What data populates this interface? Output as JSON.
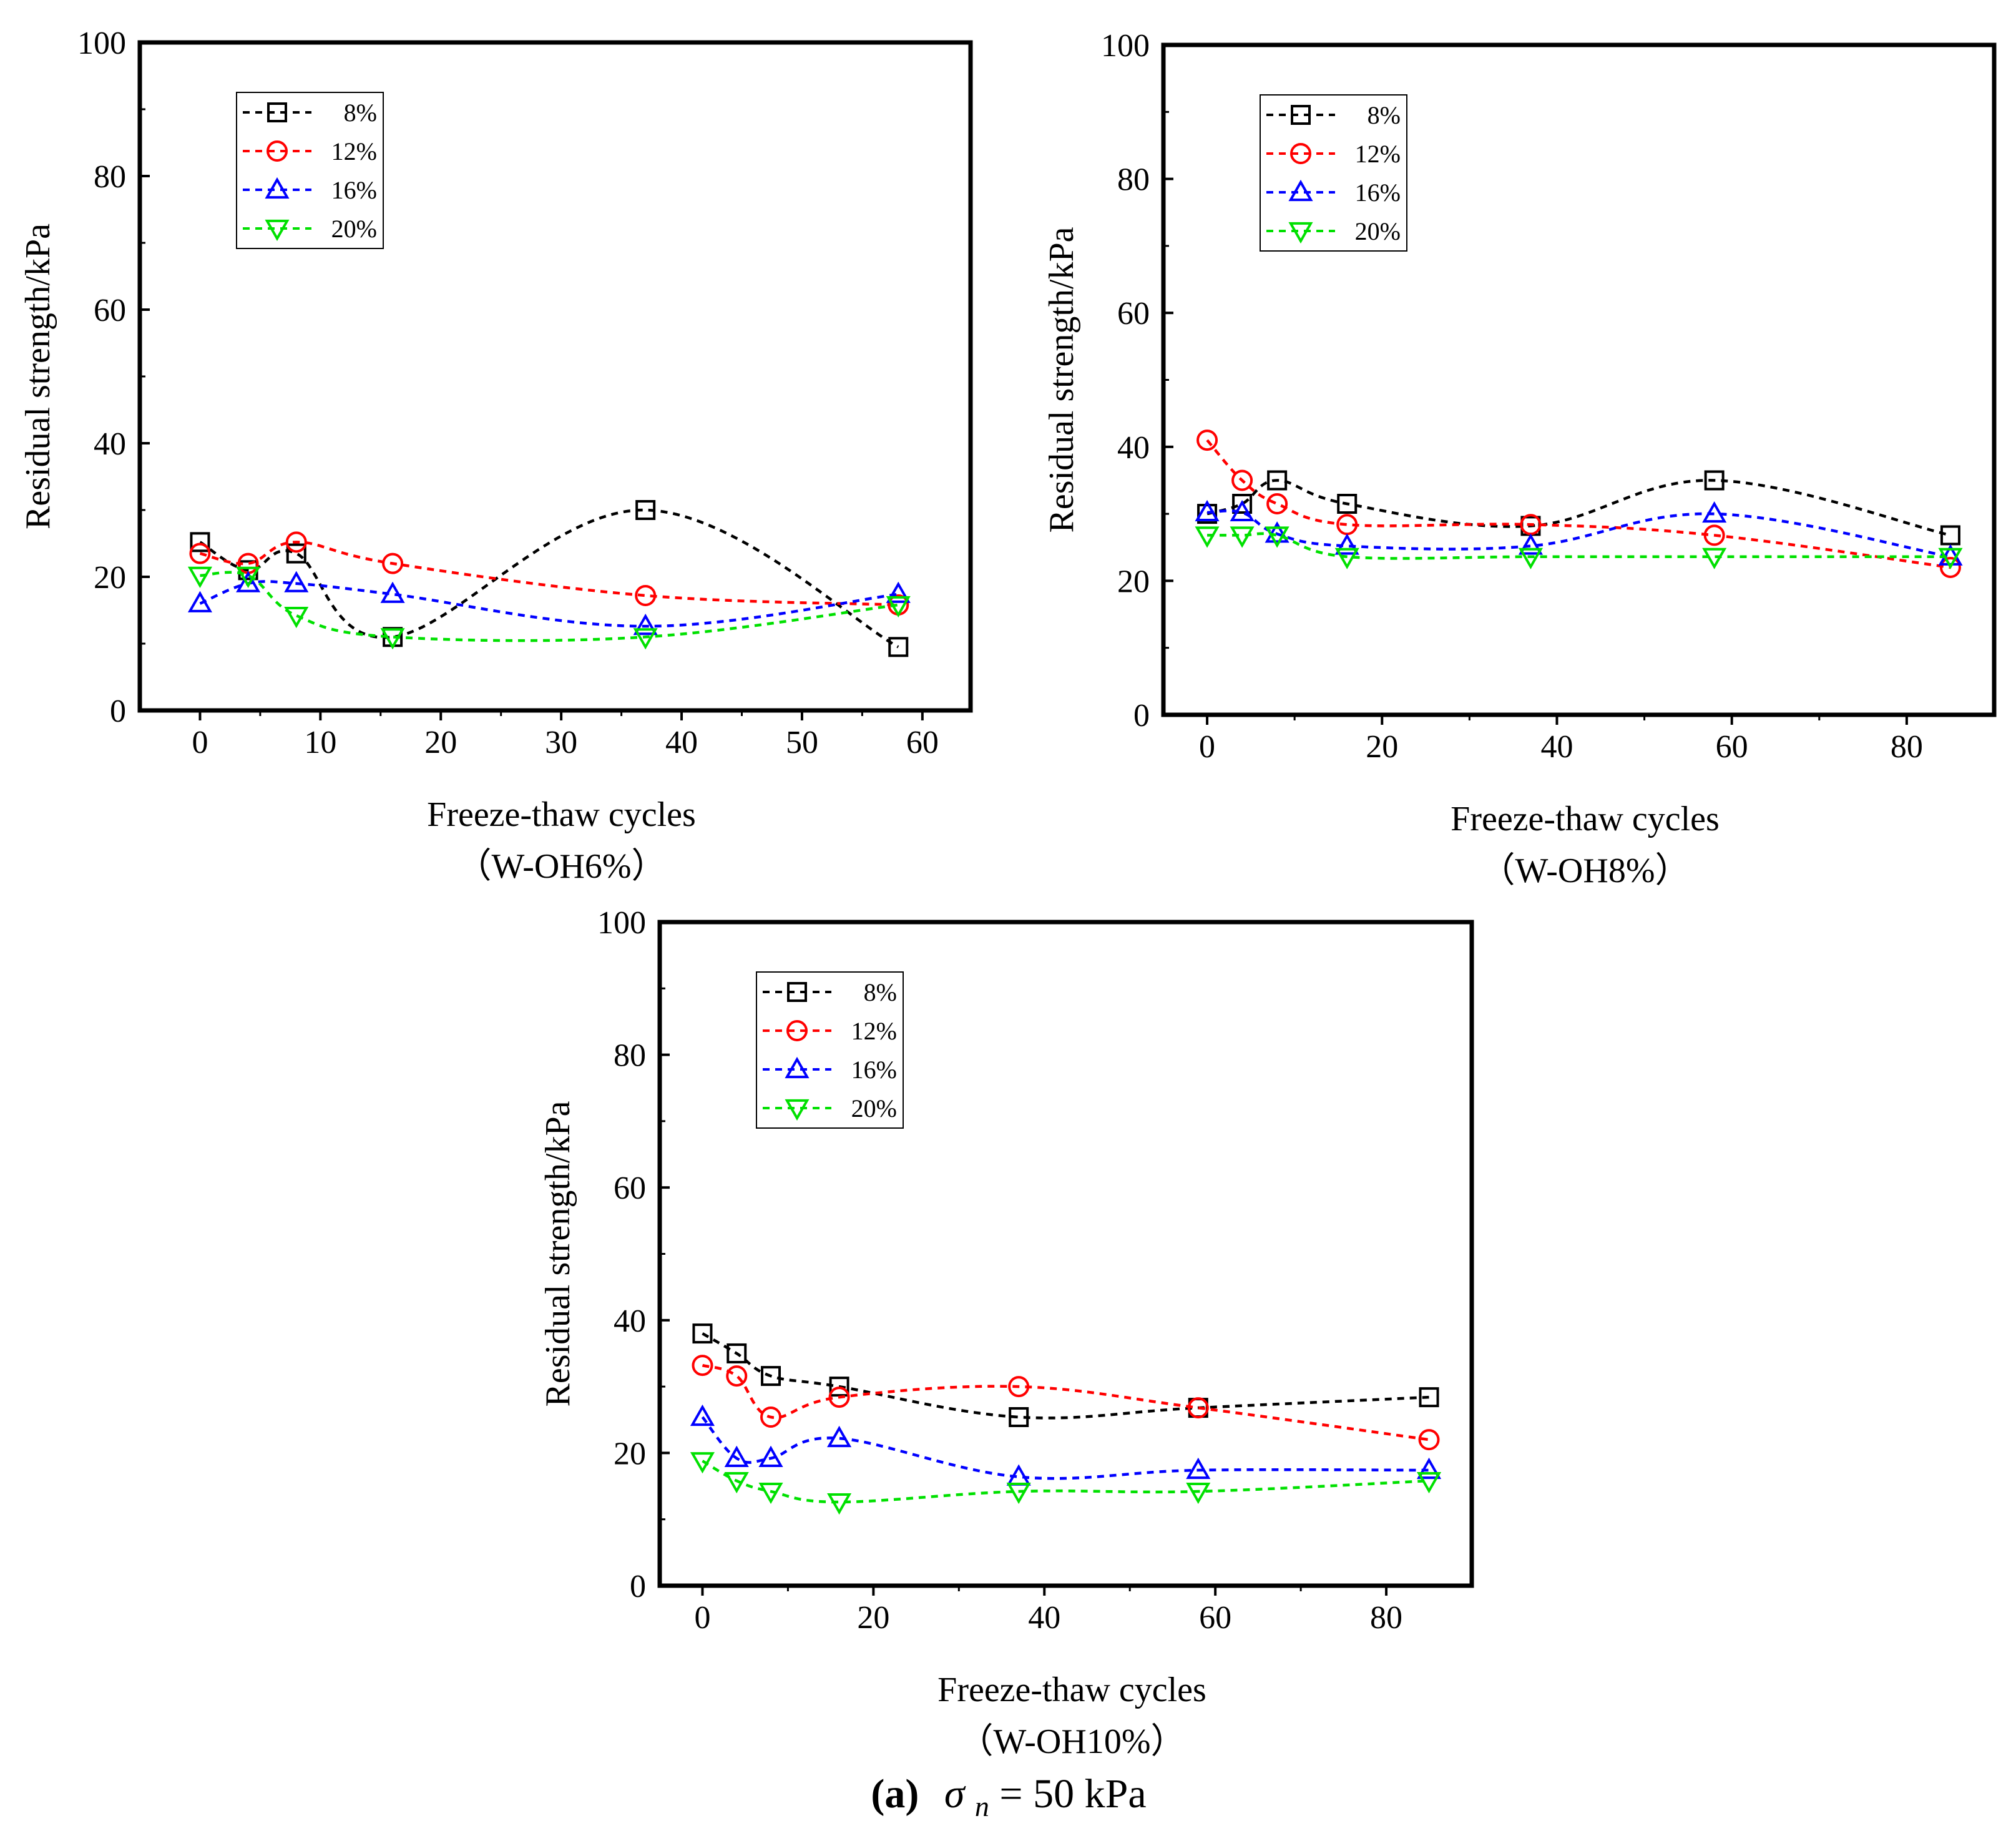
{
  "caption": {
    "label": "(a)",
    "sigma": "σ",
    "sub": "n",
    "rest": " = 50 kPa"
  },
  "colors": {
    "8%": "#000000",
    "12%": "#ff0000",
    "16%": "#0000ff",
    "20%": "#00e000"
  },
  "chart_data": [
    {
      "type": "line",
      "subtitle": "（W-OH6%）",
      "xlabel": "Freeze-thaw cycles",
      "ylabel": "Residual strength/kPa",
      "xlim": [
        -5,
        64
      ],
      "ylim": [
        0,
        100
      ],
      "xticks": [
        0,
        10,
        20,
        30,
        40,
        50,
        60
      ],
      "yticks": [
        0,
        20,
        40,
        60,
        80,
        100
      ],
      "x": [
        0,
        4,
        8,
        16,
        37,
        58
      ],
      "series": [
        {
          "name": "8%",
          "marker": "square",
          "values": [
            25.2,
            21.0,
            23.5,
            11.0,
            30.0,
            9.5
          ]
        },
        {
          "name": "12%",
          "marker": "circle",
          "values": [
            23.5,
            22.0,
            25.2,
            22.0,
            17.2,
            15.8
          ]
        },
        {
          "name": "16%",
          "marker": "triangle-up",
          "values": [
            16.0,
            19.0,
            19.0,
            17.4,
            12.6,
            17.4
          ]
        },
        {
          "name": "20%",
          "marker": "triangle-down",
          "values": [
            20.2,
            20.2,
            14.2,
            11.0,
            11.0,
            15.8
          ]
        }
      ]
    },
    {
      "type": "line",
      "subtitle": "（W-OH8%）",
      "xlabel": "Freeze-thaw cycles",
      "ylabel": "Residual strength/kPa",
      "xlim": [
        -5,
        90
      ],
      "ylim": [
        0,
        100
      ],
      "xticks": [
        0,
        20,
        40,
        60,
        80
      ],
      "yticks": [
        0,
        20,
        40,
        60,
        80,
        100
      ],
      "x": [
        0,
        4,
        8,
        16,
        37,
        58,
        85
      ],
      "series": [
        {
          "name": "8%",
          "marker": "square",
          "values": [
            30.0,
            31.5,
            35.0,
            31.5,
            28.2,
            35.0,
            26.8
          ]
        },
        {
          "name": "12%",
          "marker": "circle",
          "values": [
            41.0,
            35.0,
            31.5,
            28.4,
            28.4,
            26.8,
            22.0
          ]
        },
        {
          "name": "16%",
          "marker": "triangle-up",
          "values": [
            30.2,
            30.2,
            27.0,
            25.2,
            25.2,
            30.0,
            23.6
          ]
        },
        {
          "name": "20%",
          "marker": "triangle-down",
          "values": [
            26.8,
            26.8,
            26.8,
            23.6,
            23.6,
            23.6,
            23.6
          ]
        }
      ]
    },
    {
      "type": "line",
      "subtitle": "（W-OH10%）",
      "xlabel": "Freeze-thaw cycles",
      "ylabel": "Residual strength/kPa",
      "xlim": [
        -5,
        90
      ],
      "ylim": [
        0,
        100
      ],
      "xticks": [
        0,
        20,
        40,
        60,
        80
      ],
      "yticks": [
        0,
        20,
        40,
        60,
        80,
        100
      ],
      "x": [
        0,
        4,
        8,
        16,
        37,
        58,
        85
      ],
      "series": [
        {
          "name": "8%",
          "marker": "square",
          "values": [
            38.0,
            35.0,
            31.6,
            30.0,
            25.4,
            26.8,
            28.4
          ]
        },
        {
          "name": "12%",
          "marker": "circle",
          "values": [
            33.2,
            31.6,
            25.4,
            28.4,
            30.0,
            26.8,
            22.0
          ]
        },
        {
          "name": "16%",
          "marker": "triangle-up",
          "values": [
            25.4,
            19.2,
            19.2,
            22.2,
            16.4,
            17.4,
            17.4
          ]
        },
        {
          "name": "20%",
          "marker": "triangle-down",
          "values": [
            18.8,
            15.8,
            14.2,
            12.6,
            14.2,
            14.2,
            15.8
          ]
        }
      ]
    }
  ]
}
